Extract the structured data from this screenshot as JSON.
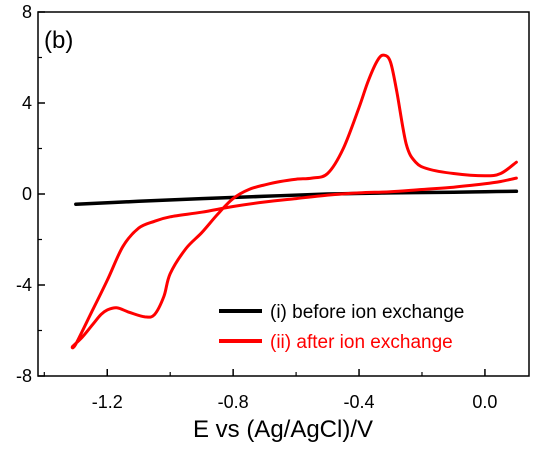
{
  "chart_data": {
    "type": "line",
    "panel_label": "(b)",
    "xlabel": "E vs (Ag/AgCl)/V",
    "ylabel": "",
    "xlim": [
      -1.42,
      0.14
    ],
    "ylim": [
      -8,
      8
    ],
    "xticks": [
      -1.2,
      -0.8,
      -0.4,
      0.0
    ],
    "xtick_labels": [
      "-1.2",
      "-0.8",
      "-0.4",
      "0.0"
    ],
    "yticks": [
      -8,
      -4,
      0,
      4,
      8
    ],
    "ytick_labels": [
      "-8",
      "-4",
      "0",
      "4",
      "8"
    ],
    "grid": false,
    "legend_position": "bottom-right",
    "series": [
      {
        "name": "(i) before ion exchange",
        "color": "#000000",
        "x": [
          -1.3,
          -1.1,
          -0.9,
          -0.7,
          -0.5,
          -0.3,
          -0.1,
          0.0,
          0.1
        ],
        "y": [
          -0.45,
          -0.32,
          -0.2,
          -0.1,
          0.0,
          0.05,
          0.08,
          0.1,
          0.12
        ]
      },
      {
        "name": "(ii) after ion exchange",
        "color": "#ff0000",
        "x": [
          0.1,
          0.05,
          0.0,
          -0.1,
          -0.2,
          -0.3,
          -0.4,
          -0.5,
          -0.6,
          -0.7,
          -0.8,
          -0.9,
          -1.0,
          -1.05,
          -1.1,
          -1.15,
          -1.2,
          -1.25,
          -1.3,
          -1.31,
          -1.28,
          -1.25,
          -1.22,
          -1.2,
          -1.17,
          -1.13,
          -1.08,
          -1.05,
          -1.02,
          -1.0,
          -0.95,
          -0.9,
          -0.85,
          -0.8,
          -0.75,
          -0.7,
          -0.65,
          -0.6,
          -0.55,
          -0.5,
          -0.45,
          -0.4,
          -0.37,
          -0.34,
          -0.32,
          -0.3,
          -0.28,
          -0.25,
          -0.22,
          -0.18,
          -0.1,
          0.0,
          0.05,
          0.1
        ],
        "y": [
          0.7,
          0.55,
          0.45,
          0.3,
          0.2,
          0.1,
          0.05,
          -0.05,
          -0.2,
          -0.35,
          -0.55,
          -0.8,
          -1.0,
          -1.2,
          -1.5,
          -2.3,
          -3.8,
          -5.2,
          -6.6,
          -6.7,
          -6.3,
          -5.8,
          -5.3,
          -5.1,
          -5.0,
          -5.2,
          -5.4,
          -5.3,
          -4.5,
          -3.5,
          -2.4,
          -1.7,
          -0.9,
          -0.2,
          0.2,
          0.4,
          0.55,
          0.65,
          0.7,
          0.9,
          2.0,
          3.8,
          5.0,
          5.9,
          6.1,
          5.8,
          4.5,
          2.2,
          1.4,
          1.1,
          0.9,
          0.8,
          0.9,
          1.4
        ]
      }
    ]
  }
}
